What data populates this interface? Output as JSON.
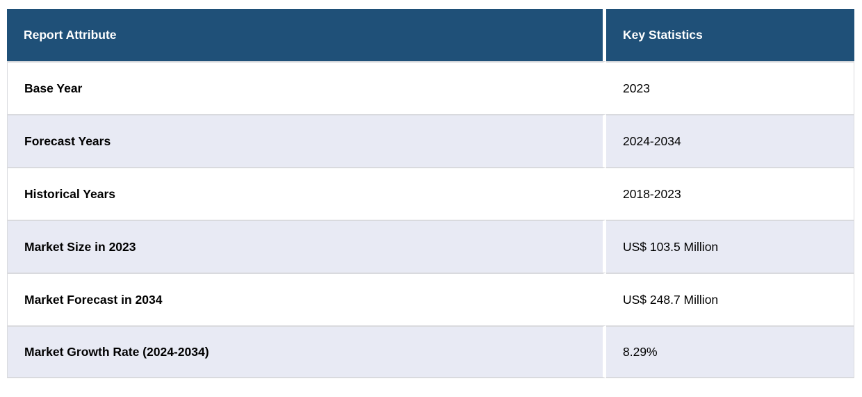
{
  "table": {
    "header": {
      "attribute_label": "Report Attribute",
      "statistics_label": "Key Statistics"
    },
    "rows": [
      {
        "attribute": "Base Year",
        "value": "2023"
      },
      {
        "attribute": "Forecast Years",
        "value": "2024-2034"
      },
      {
        "attribute": "Historical Years",
        "value": "2018-2023"
      },
      {
        "attribute": "Market Size in 2023",
        "value": "US$ 103.5 Million"
      },
      {
        "attribute": "Market Forecast in 2034",
        "value": "US$ 248.7 Million"
      },
      {
        "attribute": "Market Growth Rate (2024-2034)",
        "value": "8.29%"
      }
    ],
    "colors": {
      "header_bg": "#1f5078",
      "header_text": "#ffffff",
      "stripe_bg": "#e8eaf4",
      "row_bg": "#ffffff",
      "border": "#d9dade",
      "body_text": "#000000"
    }
  },
  "chart_data": {
    "type": "table",
    "title": "Report Key Statistics",
    "columns": [
      "Report Attribute",
      "Key Statistics"
    ],
    "rows": [
      [
        "Base Year",
        "2023"
      ],
      [
        "Forecast Years",
        "2024-2034"
      ],
      [
        "Historical Years",
        "2018-2023"
      ],
      [
        "Market Size in 2023",
        "US$ 103.5 Million"
      ],
      [
        "Market Forecast in 2034",
        "US$ 248.7 Million"
      ],
      [
        "Market Growth Rate (2024-2034)",
        "8.29%"
      ]
    ],
    "layout_hints": {
      "stripe_rows": [
        2,
        4,
        6
      ],
      "header_style": "dark-blue-bold-white",
      "first_column_bold": true
    }
  }
}
